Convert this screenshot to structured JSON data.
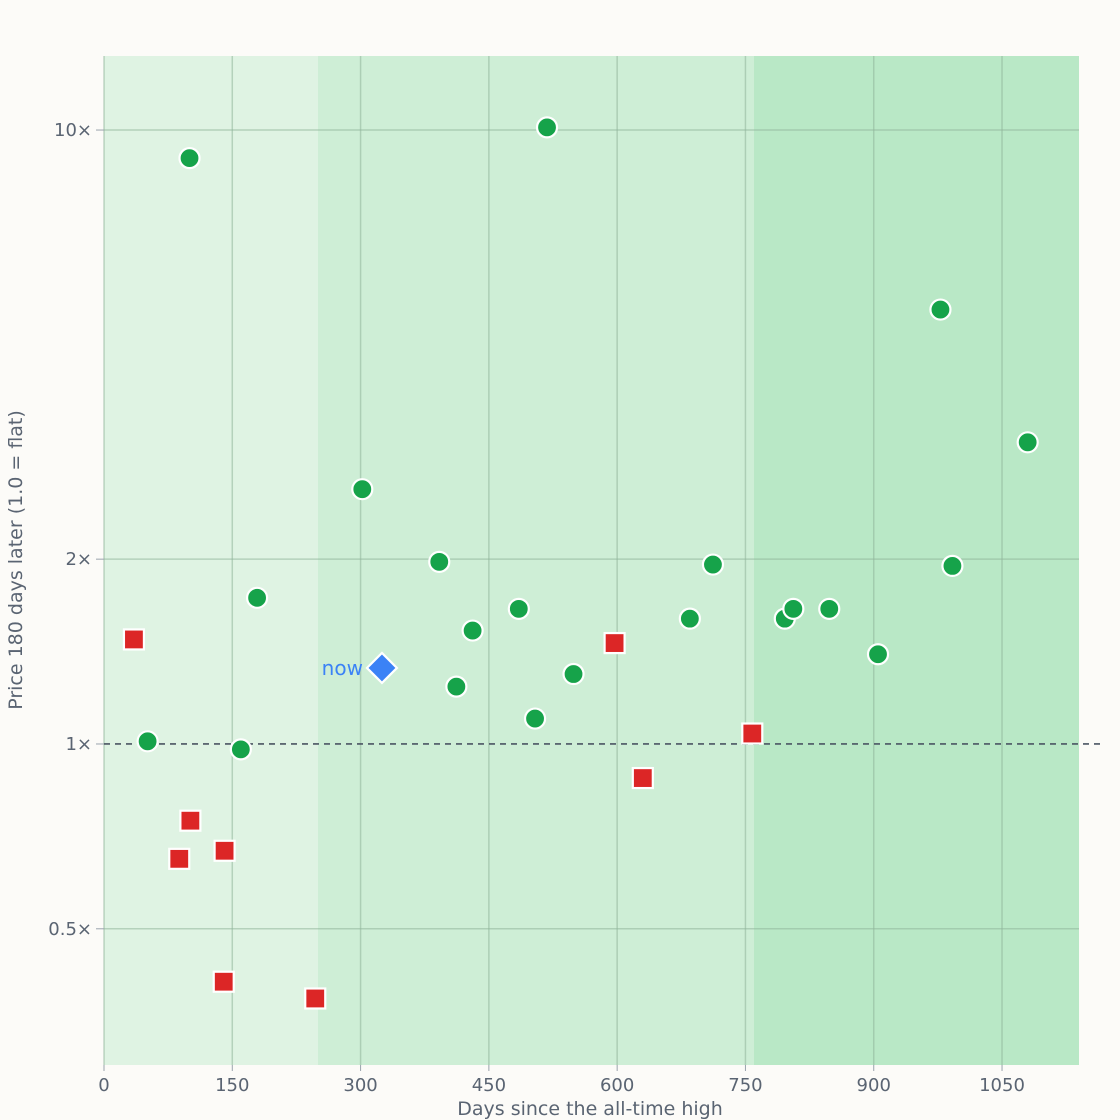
{
  "chart_data": {
    "type": "scatter",
    "title": "",
    "xlabel": "Days since the all-time high",
    "ylabel": "Price 180 days later (1.0 = flat)",
    "xlim": [
      0,
      1140
    ],
    "ylim_log": [
      0.3,
      13.2
    ],
    "y_scale": "log",
    "x_ticks": [
      0,
      150,
      300,
      450,
      600,
      750,
      900,
      1050
    ],
    "x_tick_labels": [
      "0",
      "150",
      "300",
      "450",
      "600",
      "750",
      "900",
      "1050"
    ],
    "y_ticks": [
      0.5,
      1,
      2,
      10
    ],
    "y_tick_labels": [
      "0.5×",
      "1×",
      "2×",
      "10×"
    ],
    "reference_line": {
      "y": 1,
      "style": "dashed"
    },
    "grid": true,
    "bands": [
      {
        "x_from": 0,
        "x_to": 250,
        "color": "#dff3e3"
      },
      {
        "x_from": 250,
        "x_to": 760,
        "color": "#ceeed6"
      },
      {
        "x_from": 760,
        "x_to": 1140,
        "color": "#b9e8c6"
      }
    ],
    "series": [
      {
        "marker": "circle",
        "color": "#16a34a",
        "points": [
          {
            "x": 100,
            "y": 9.0
          },
          {
            "x": 51,
            "y": 1.01
          },
          {
            "x": 160,
            "y": 0.98
          },
          {
            "x": 179,
            "y": 1.73
          },
          {
            "x": 302,
            "y": 2.6
          },
          {
            "x": 392,
            "y": 1.98
          },
          {
            "x": 412,
            "y": 1.24
          },
          {
            "x": 431,
            "y": 1.53
          },
          {
            "x": 485,
            "y": 1.66
          },
          {
            "x": 504,
            "y": 1.1
          },
          {
            "x": 518,
            "y": 10.1
          },
          {
            "x": 549,
            "y": 1.3
          },
          {
            "x": 685,
            "y": 1.6
          },
          {
            "x": 712,
            "y": 1.96
          },
          {
            "x": 796,
            "y": 1.6
          },
          {
            "x": 806,
            "y": 1.66
          },
          {
            "x": 848,
            "y": 1.66
          },
          {
            "x": 905,
            "y": 1.4
          },
          {
            "x": 978,
            "y": 5.1
          },
          {
            "x": 992,
            "y": 1.95
          },
          {
            "x": 1080,
            "y": 3.1
          }
        ]
      },
      {
        "marker": "square",
        "color": "#dc2626",
        "points": [
          {
            "x": 35,
            "y": 1.48
          },
          {
            "x": 88,
            "y": 0.65
          },
          {
            "x": 101,
            "y": 0.75
          },
          {
            "x": 141,
            "y": 0.67
          },
          {
            "x": 140,
            "y": 0.41
          },
          {
            "x": 247,
            "y": 0.385
          },
          {
            "x": 597,
            "y": 1.46
          },
          {
            "x": 630,
            "y": 0.88
          },
          {
            "x": 758,
            "y": 1.04
          }
        ]
      }
    ],
    "highlight": {
      "label": "now",
      "x": 325,
      "y": 1.33,
      "marker": "diamond",
      "color": "#3b82f6"
    }
  }
}
